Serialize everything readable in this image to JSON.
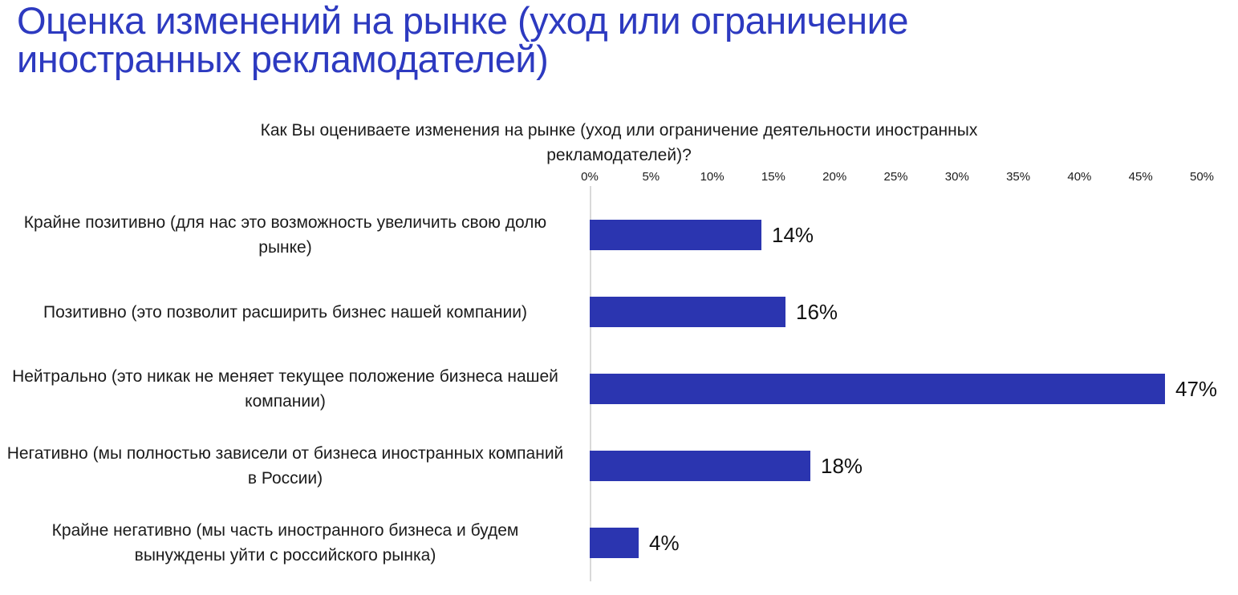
{
  "page": {
    "title": "Оценка изменений на рынке (уход или ограничение иностранных рекламодателей)"
  },
  "chart_data": {
    "type": "bar",
    "orientation": "horizontal",
    "title": "Как Вы оцениваете изменения на рынке (уход или ограничение деятельности иностранных рекламодателей)?",
    "categories": [
      "Крайне позитивно (для нас это возможность увеличить свою долю рынке)",
      "Позитивно (это позволит расширить бизнес нашей компании)",
      "Нейтрально (это никак не меняет текущее положение бизнеса нашей компании)",
      "Негативно (мы полностью зависели от бизнеса иностранных компаний в России)",
      "Крайне негативно (мы часть иностранного бизнеса и будем вынуждены уйти с российского рынка)"
    ],
    "values": [
      14,
      16,
      47,
      18,
      4
    ],
    "value_labels": [
      "14%",
      "16%",
      "47%",
      "18%",
      "4%"
    ],
    "xlabel": "",
    "ylabel": "",
    "xlim": [
      0,
      50
    ],
    "x_ticks": [
      "0%",
      "5%",
      "10%",
      "15%",
      "20%",
      "25%",
      "30%",
      "35%",
      "40%",
      "45%",
      "50%"
    ],
    "grid": false,
    "legend": false,
    "bar_color": "#2b35b0",
    "title_color": "#2d3ac0",
    "axis_line_color": "#d9d9d9"
  }
}
